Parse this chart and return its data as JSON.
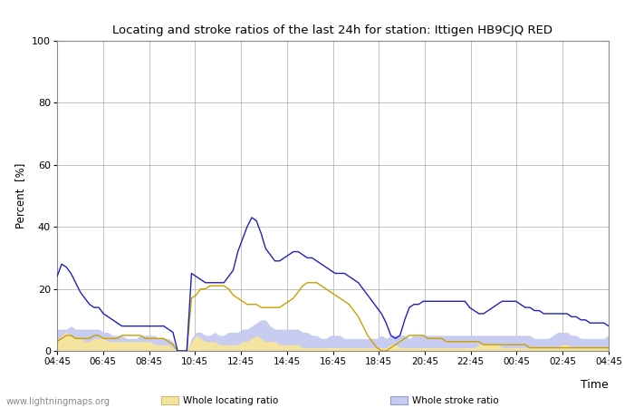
{
  "title": "Locating and stroke ratios of the last 24h for station: Ittigen HB9CJQ RED",
  "xlabel": "Time",
  "ylabel": "Percent  [%]",
  "ylim": [
    0,
    100
  ],
  "yticks": [
    0,
    20,
    40,
    60,
    80,
    100
  ],
  "x_labels": [
    "04:45",
    "06:45",
    "08:45",
    "10:45",
    "12:45",
    "14:45",
    "16:45",
    "18:45",
    "20:45",
    "22:45",
    "00:45",
    "02:45",
    "04:45"
  ],
  "watermark": "www.lightningmaps.org",
  "whole_locating_color": "#f5e4a0",
  "whole_locating_edge": "#d4b86a",
  "whole_stroke_color": "#c8ccf0",
  "whole_stroke_edge": "#9098d0",
  "locating_station_color": "#c8a000",
  "stroke_station_color": "#2020c0",
  "whole_locating": [
    3,
    5,
    6,
    5,
    4,
    4,
    3,
    3,
    4,
    4,
    4,
    3,
    3,
    3,
    3,
    3,
    3,
    3,
    3,
    3,
    3,
    2,
    2,
    2,
    2,
    1,
    0,
    0,
    0,
    3,
    5,
    4,
    3,
    3,
    3,
    2,
    2,
    2,
    2,
    2,
    3,
    3,
    4,
    5,
    4,
    3,
    3,
    3,
    2,
    2,
    2,
    2,
    2,
    1,
    1,
    1,
    1,
    1,
    1,
    1,
    1,
    1,
    1,
    1,
    1,
    1,
    1,
    1,
    1,
    1,
    1,
    1,
    2,
    2,
    1,
    1,
    1,
    1,
    1,
    1,
    1,
    1,
    1,
    1,
    1,
    1,
    1,
    1,
    1,
    1,
    1,
    2,
    2,
    2,
    2,
    2,
    1,
    1,
    1,
    1,
    1,
    1,
    1,
    1,
    1,
    1,
    1,
    1,
    1,
    2,
    2,
    1,
    1,
    1,
    1,
    1,
    1,
    1,
    1,
    1
  ],
  "whole_stroke": [
    7,
    7,
    7,
    8,
    7,
    7,
    7,
    7,
    7,
    7,
    6,
    6,
    5,
    5,
    5,
    4,
    4,
    4,
    5,
    5,
    5,
    5,
    4,
    4,
    4,
    3,
    0,
    0,
    0,
    4,
    6,
    6,
    5,
    5,
    6,
    5,
    5,
    6,
    6,
    6,
    7,
    7,
    8,
    9,
    10,
    10,
    8,
    7,
    7,
    7,
    7,
    7,
    7,
    6,
    6,
    5,
    5,
    4,
    4,
    5,
    5,
    5,
    4,
    4,
    4,
    4,
    4,
    4,
    4,
    4,
    5,
    4,
    5,
    5,
    5,
    5,
    4,
    5,
    5,
    5,
    5,
    5,
    5,
    5,
    5,
    5,
    5,
    5,
    5,
    5,
    5,
    5,
    5,
    5,
    5,
    5,
    5,
    5,
    5,
    5,
    5,
    5,
    5,
    4,
    4,
    4,
    4,
    5,
    6,
    6,
    6,
    5,
    5,
    4,
    4,
    4,
    4,
    4,
    4,
    5
  ],
  "locating_station": [
    3,
    4,
    5,
    5,
    4,
    4,
    4,
    4,
    5,
    5,
    4,
    4,
    4,
    4,
    5,
    5,
    5,
    5,
    5,
    4,
    4,
    4,
    4,
    4,
    3,
    2,
    0,
    0,
    0,
    17,
    18,
    20,
    20,
    21,
    21,
    21,
    21,
    20,
    18,
    17,
    16,
    15,
    15,
    15,
    14,
    14,
    14,
    14,
    14,
    15,
    16,
    17,
    19,
    21,
    22,
    22,
    22,
    21,
    20,
    19,
    18,
    17,
    16,
    15,
    13,
    11,
    8,
    5,
    3,
    1,
    0,
    0,
    1,
    2,
    3,
    4,
    5,
    5,
    5,
    5,
    4,
    4,
    4,
    4,
    3,
    3,
    3,
    3,
    3,
    3,
    3,
    3,
    2,
    2,
    2,
    2,
    2,
    2,
    2,
    2,
    2,
    2,
    1,
    1,
    1,
    1,
    1,
    1,
    1,
    1,
    1,
    1,
    1,
    1,
    1,
    1,
    1,
    1,
    1,
    1
  ],
  "stroke_station": [
    24,
    28,
    27,
    25,
    22,
    19,
    17,
    15,
    14,
    14,
    12,
    11,
    10,
    9,
    8,
    8,
    8,
    8,
    8,
    8,
    8,
    8,
    8,
    8,
    7,
    6,
    0,
    0,
    0,
    25,
    24,
    23,
    22,
    22,
    22,
    22,
    22,
    24,
    26,
    32,
    36,
    40,
    43,
    42,
    38,
    33,
    31,
    29,
    29,
    30,
    31,
    32,
    32,
    31,
    30,
    30,
    29,
    28,
    27,
    26,
    25,
    25,
    25,
    24,
    23,
    22,
    20,
    18,
    16,
    14,
    12,
    9,
    5,
    4,
    5,
    10,
    14,
    15,
    15,
    16,
    16,
    16,
    16,
    16,
    16,
    16,
    16,
    16,
    16,
    14,
    13,
    12,
    12,
    13,
    14,
    15,
    16,
    16,
    16,
    16,
    15,
    14,
    14,
    13,
    13,
    12,
    12,
    12,
    12,
    12,
    12,
    11,
    11,
    10,
    10,
    9,
    9,
    9,
    9,
    8
  ]
}
